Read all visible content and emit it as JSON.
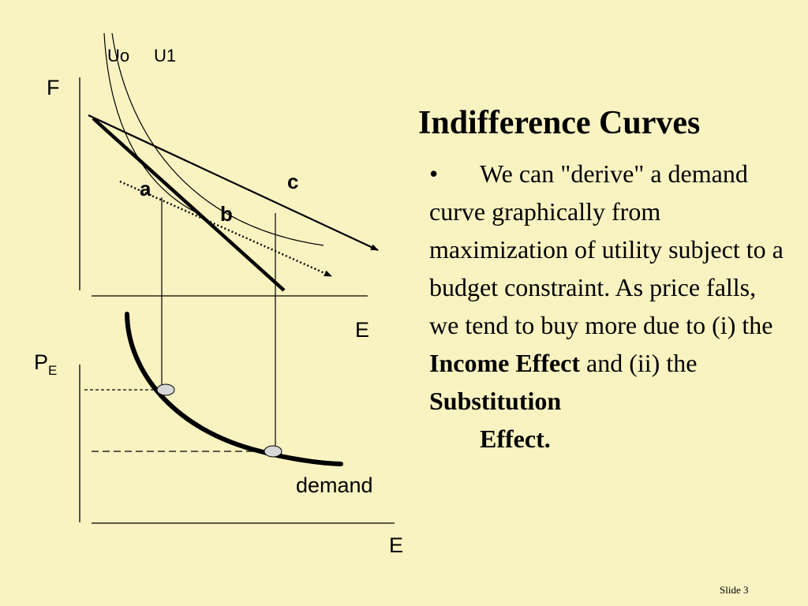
{
  "slide": {
    "title": "Indifference Curves",
    "bullet_symbol": "•",
    "body": {
      "text1": "We can \"derive\" a demand curve graphically from maximization of utility subject to a budget constraint.  As price falls, we tend to buy more due to (i) the ",
      "bold1": "Income Effect",
      "text2": " and (ii) the ",
      "bold2": "Substitution",
      "bold3": "Effect."
    },
    "slide_number": "Slide 3"
  },
  "diagram": {
    "upper": {
      "y_axis_label": "F",
      "x_axis_label": "E",
      "curve_labels": [
        "Uo",
        "U1"
      ],
      "point_labels": {
        "a": "a",
        "b": "b",
        "c": "c"
      }
    },
    "lower": {
      "y_axis_label": "P",
      "y_axis_subscript": "E",
      "x_axis_label": "E",
      "curve_label": "demand"
    }
  }
}
